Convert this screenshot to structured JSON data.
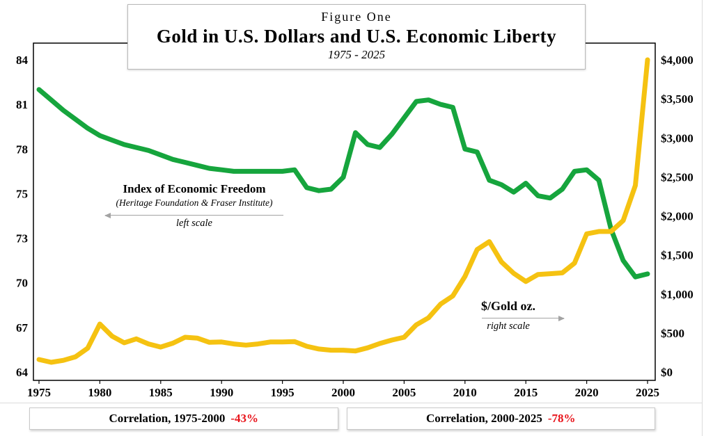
{
  "title": {
    "figure_label": "Figure One",
    "main": "Gold in U.S. Dollars and U.S. Economic Liberty",
    "years": "1975 - 2025"
  },
  "annotations": {
    "freedom": {
      "title": "Index of Economic Freedom",
      "subtitle": "(Heritage Foundation & Fraser Institute)",
      "scale_note": "left scale"
    },
    "gold": {
      "title": "$/Gold oz.",
      "scale_note": "right scale"
    }
  },
  "correlations": [
    {
      "label": "Correlation, 1975-2000",
      "value": "-43%"
    },
    {
      "label": "Correlation, 2000-2025",
      "value": "-78%"
    }
  ],
  "colors": {
    "freedom_line": "#16a53d",
    "gold_line": "#f5c211",
    "correlation_value": "#e8131a",
    "arrow": "#a3a3a3",
    "frame": "#000000"
  },
  "chart_data": {
    "type": "line",
    "title": "Gold in U.S. Dollars and U.S. Economic Liberty",
    "subtitle": "1975 - 2025",
    "x": [
      1975,
      1976,
      1977,
      1978,
      1979,
      1980,
      1981,
      1982,
      1983,
      1984,
      1985,
      1986,
      1987,
      1988,
      1989,
      1990,
      1991,
      1992,
      1993,
      1994,
      1995,
      1996,
      1997,
      1998,
      1999,
      2000,
      2001,
      2002,
      2003,
      2004,
      2005,
      2006,
      2007,
      2008,
      2009,
      2010,
      2011,
      2012,
      2013,
      2014,
      2015,
      2016,
      2017,
      2018,
      2019,
      2020,
      2021,
      2022,
      2023,
      2024,
      2025
    ],
    "x_ticks": [
      1975,
      1980,
      1985,
      1990,
      1995,
      2000,
      2005,
      2010,
      2015,
      2020,
      2025
    ],
    "left_axis": {
      "label": "Index of Economic Freedom (left scale)",
      "ticks": [
        84,
        81,
        78,
        75,
        73,
        70,
        67,
        64
      ],
      "tick_spacing": "even"
    },
    "right_axis": {
      "label": "$/Gold oz. (right scale)",
      "ticks": [
        "$4,000",
        "$3,500",
        "$3,000",
        "$2,500",
        "$2,000",
        "$1,500",
        "$1,000",
        "$500",
        "$0"
      ],
      "min": 0,
      "max": 4000
    },
    "legend_position": "in-plot annotations",
    "grid": false,
    "series": [
      {
        "name": "Index of Economic Freedom",
        "axis": "left",
        "color": "#16a53d",
        "values": [
          82.0,
          81.3,
          80.6,
          80.0,
          79.4,
          78.9,
          78.6,
          78.3,
          78.1,
          77.9,
          77.6,
          77.3,
          77.1,
          76.9,
          76.7,
          76.6,
          76.5,
          76.5,
          76.5,
          76.5,
          76.5,
          76.6,
          75.4,
          75.2,
          75.3,
          76.1,
          79.1,
          78.3,
          78.1,
          79.0,
          80.1,
          81.2,
          81.3,
          81.0,
          80.8,
          78.0,
          77.8,
          75.9,
          75.6,
          75.1,
          75.7,
          74.9,
          74.8,
          75.3,
          76.5,
          76.6,
          75.9,
          73.4,
          71.5,
          70.4,
          70.6
        ]
      },
      {
        "name": "$/Gold oz.",
        "axis": "right",
        "color": "#f5c211",
        "values": [
          160,
          125,
          150,
          195,
          305,
          615,
          460,
          375,
          425,
          360,
          320,
          370,
          445,
          435,
          380,
          385,
          360,
          345,
          360,
          385,
          385,
          390,
          330,
          295,
          280,
          280,
          270,
          310,
          365,
          410,
          445,
          605,
          695,
          870,
          975,
          1225,
          1570,
          1670,
          1410,
          1265,
          1160,
          1250,
          1260,
          1270,
          1395,
          1770,
          1800,
          1800,
          1940,
          2390,
          4000
        ]
      }
    ]
  }
}
